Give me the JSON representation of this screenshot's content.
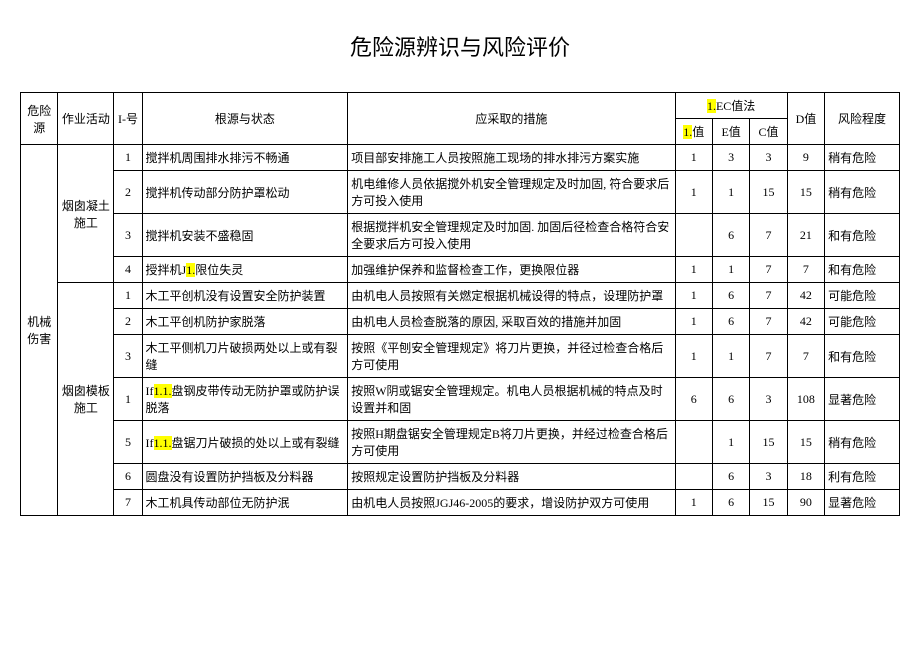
{
  "title": "危险源辨识与风险评价",
  "header": {
    "col_hazard": "危险源",
    "col_activity": "作业活动",
    "col_seq": "I-号",
    "col_source": "根源与状态",
    "col_measure": "应采取的措施",
    "col_group_method_prefix": "1.",
    "col_group_method": "EC值法",
    "col_L_prefix": "1.",
    "col_L": "值",
    "col_E": "E值",
    "col_C": "C值",
    "col_D": "D值",
    "col_level": "风险程度"
  },
  "hazard_main": "机械伤害",
  "activity1": "烟囱凝土施工",
  "activity2": "烟囱模板施工",
  "rows": [
    {
      "n": "1",
      "src": "搅拌机周围排水排污不畅通",
      "mea": "项目部安排施工人员按照施工现场的排水排污方案实施",
      "L": "1",
      "E": "3",
      "C": "3",
      "D": "9",
      "lvl": "稍有危险"
    },
    {
      "n": "2",
      "src": "搅拌机传动部分防护罩松动",
      "mea": "机电维修人员依据搅外机安全管理规定及时加固, 符合要求后方可投入使用",
      "L": "1",
      "E": "1",
      "C": "15",
      "D": "15",
      "lvl": "稍有危险"
    },
    {
      "n": "3",
      "src": "搅拌机安装不盛稳固",
      "mea": "根据搅拌机安全管理规定及时加固. 加固后径检查合格符合安全要求后方可投入使用",
      "L": "",
      "E": "6",
      "C": "7",
      "D": "21",
      "lvl": "和有危险"
    },
    {
      "n": "4",
      "src_pre": "授拌机J",
      "src_hl": "1.",
      "src_post": "限位失灵",
      "mea": "加强维护保养和监督检查工作，更换限位器",
      "L": "1",
      "E": "1",
      "C": "7",
      "D": "7",
      "lvl": "和有危险"
    },
    {
      "n": "1",
      "src": "木工平创机没有设置安全防护装置",
      "mea": "由机电人员按照有关燃定根据机械设得的特点，设理防护罩",
      "L": "1",
      "E": "6",
      "C": "7",
      "D": "42",
      "lvl": "可能危险"
    },
    {
      "n": "2",
      "src": "木工平创机防护家脱落",
      "mea": "由机电人员检查脱落的原因, 采取百效的措施并加固",
      "L": "1",
      "E": "6",
      "C": "7",
      "D": "42",
      "lvl": "可能危险"
    },
    {
      "n": "3",
      "src": "木工平侧机刀片破损两处以上或有裂缝",
      "mea": "按照《平刨安全管理规定》将刀片更换，并径过检查合格后方可使用",
      "L": "1",
      "E": "1",
      "C": "7",
      "D": "7",
      "lvl": "和有危险"
    },
    {
      "n": "1",
      "src_pre": "If",
      "src_hl": "1.1.",
      "src_post": "盘钢皮带传动无防护罩或防护误脱落",
      "mea": "按照W阴或锯安全管理规定。机电人员根据机械的特点及时设置并和固",
      "L": "6",
      "E": "6",
      "C": "3",
      "D": "108",
      "lvl": "显著危险"
    },
    {
      "n": "5",
      "src_pre": "If",
      "src_hl": "1.1.",
      "src_post": "盘锯刀片破损的处以上或有裂缝",
      "mea": "按照H期盘锯安全管理规定B将刀片更换，并经过检查合格后方可使用",
      "L": "",
      "E": "1",
      "C": "15",
      "D": "15",
      "lvl": "稍有危险"
    },
    {
      "n": "6",
      "src": "圆盘没有设置防护挡板及分料器",
      "mea": "按照规定设置防护挡板及分料器",
      "L": "",
      "E": "6",
      "C": "3",
      "D": "18",
      "lvl": "利有危险"
    },
    {
      "n": "7",
      "src": "木工机具传动部位无防护泯",
      "mea": "由机电人员按照JGJ46-2005的要求，增设防护双方可使用",
      "L": "1",
      "E": "6",
      "C": "15",
      "D": "90",
      "lvl": "显著危险"
    }
  ]
}
